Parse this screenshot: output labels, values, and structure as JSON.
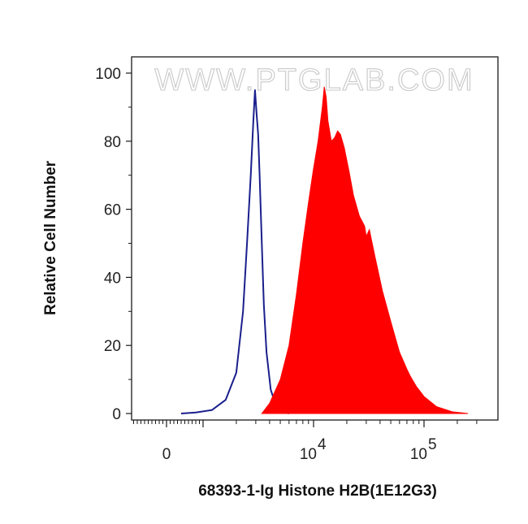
{
  "chart_data": {
    "type": "area",
    "title": "",
    "xlabel": "68393-1-Ig Histone H2B(1E12G3)",
    "ylabel": "Relative Cell Number",
    "xscale": "biexponential (log above 10^3)",
    "ylim": [
      0,
      100
    ],
    "yticks": [
      0,
      20,
      40,
      60,
      80,
      100
    ],
    "xticks": [
      {
        "value": 0,
        "base": "0",
        "exp": ""
      },
      {
        "value": 10000,
        "base": "10",
        "exp": "4"
      },
      {
        "value": 100000,
        "base": "10",
        "exp": "5"
      }
    ],
    "watermark": "WWW.PTGLAB.COM",
    "grid": false,
    "series": [
      {
        "kind": "outline",
        "color": "#1a1f8c",
        "x": [
          400,
          800,
          1200,
          1600,
          2000,
          2300,
          2500,
          2700,
          2850,
          2950,
          3050,
          3150,
          3250,
          3400,
          3550,
          3750,
          4100,
          4600,
          5300,
          6000
        ],
        "y": [
          0,
          0.3,
          1,
          4,
          12,
          30,
          50,
          70,
          86,
          95,
          88,
          82,
          70,
          50,
          32,
          18,
          7,
          2,
          0.5,
          0
        ]
      },
      {
        "kind": "filled",
        "color": "#ff0000",
        "x": [
          3400,
          4000,
          5000,
          6000,
          7000,
          8000,
          9000,
          10000,
          11000,
          12000,
          12500,
          13000,
          13500,
          14500,
          15500,
          16500,
          17500,
          19000,
          21000,
          23000,
          26000,
          29000,
          30000,
          32000,
          36000,
          42000,
          50000,
          60000,
          70000,
          75000,
          85000,
          100000,
          130000,
          180000,
          250000
        ],
        "y": [
          0,
          3,
          10,
          20,
          35,
          50,
          62,
          72,
          80,
          90,
          96,
          93,
          86,
          80,
          81,
          83,
          82,
          78,
          71,
          64,
          58,
          55,
          52,
          54,
          46,
          36,
          27,
          18,
          13,
          11,
          8,
          5,
          2,
          0.5,
          0
        ]
      }
    ]
  }
}
